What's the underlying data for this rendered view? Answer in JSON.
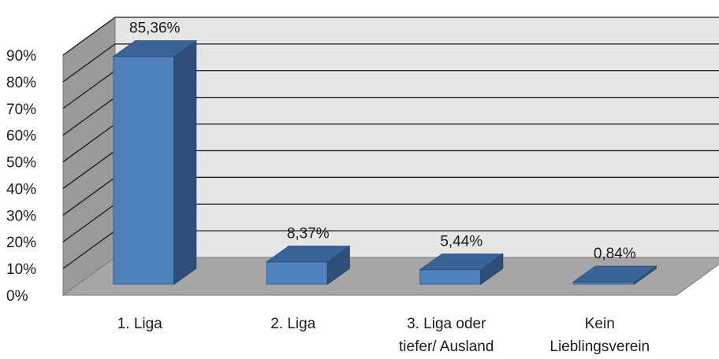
{
  "chart_data": {
    "type": "bar",
    "style": "3d-column",
    "categories": [
      [
        "1. Liga"
      ],
      [
        "2. Liga"
      ],
      [
        "3. Liga oder",
        "tiefer/ Ausland"
      ],
      [
        "Kein",
        "Lieblingsverein"
      ]
    ],
    "values": [
      85.36,
      8.37,
      5.44,
      0.84
    ],
    "data_labels": [
      "85,36%",
      "8,37%",
      "5,44%",
      "0,84%"
    ],
    "y_ticks": [
      "0%",
      "10%",
      "20%",
      "30%",
      "40%",
      "50%",
      "60%",
      "70%",
      "80%",
      "90%"
    ],
    "ylim": [
      0,
      90
    ],
    "grid": true,
    "title": "",
    "xlabel": "",
    "ylabel": "",
    "colors": {
      "bar_front": "#4f81bd",
      "bar_side": "#2f4f7a",
      "bar_top": "#3a6497",
      "back_wall": "#e6e6e6",
      "side_wall": "#9a9a9a",
      "floor": "#a6a6a6",
      "grid": "#1a1a1a"
    }
  }
}
